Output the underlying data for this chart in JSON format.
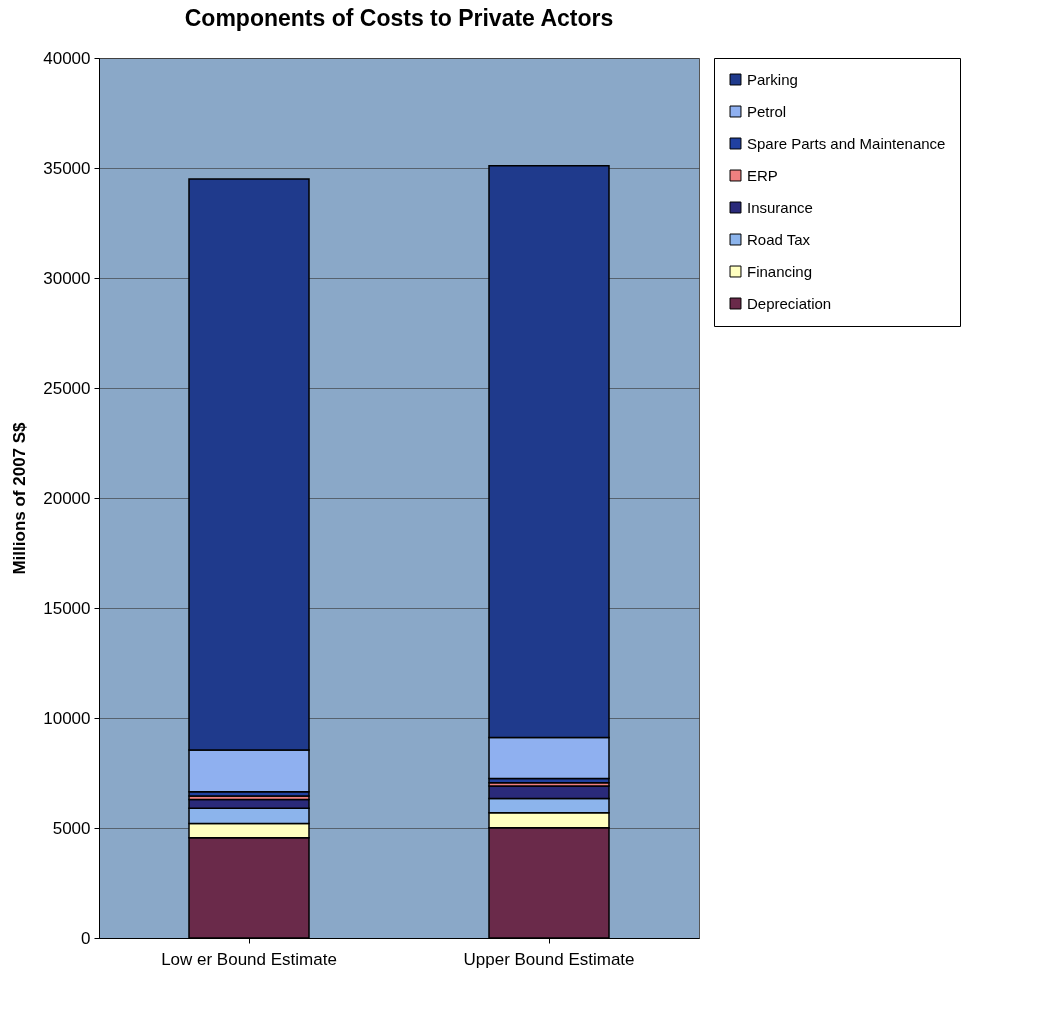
{
  "chart_data": {
    "type": "bar",
    "title": "Components of Costs to Private Actors",
    "ylabel": "Millions of 2007 S$",
    "categories": [
      "Low er Bound Estimate",
      "Upper Bound Estimate"
    ],
    "stacked": true,
    "series": [
      {
        "name": "Depreciation",
        "color": "#6a2a4a",
        "values": [
          4560,
          5010
        ]
      },
      {
        "name": "Financing",
        "color": "#ffffc0",
        "values": [
          640,
          680
        ]
      },
      {
        "name": "Road Tax",
        "color": "#8cb4ec",
        "values": [
          700,
          650
        ]
      },
      {
        "name": "Insurance",
        "color": "#2a2a7a",
        "values": [
          400,
          570
        ]
      },
      {
        "name": "ERP",
        "color": "#f08080",
        "values": [
          150,
          150
        ]
      },
      {
        "name": "Spare Parts and Maintenance",
        "color": "#2040a0",
        "values": [
          200,
          190
        ]
      },
      {
        "name": "Petrol",
        "color": "#8fb0f0",
        "values": [
          1900,
          1860
        ]
      },
      {
        "name": "Parking",
        "color": "#1f3a8c",
        "values": [
          25950,
          25990
        ]
      }
    ],
    "ylim": [
      0,
      40000
    ],
    "yticks": [
      0,
      5000,
      10000,
      15000,
      20000,
      25000,
      30000,
      35000,
      40000
    ],
    "grid": "y",
    "legend": "right"
  }
}
